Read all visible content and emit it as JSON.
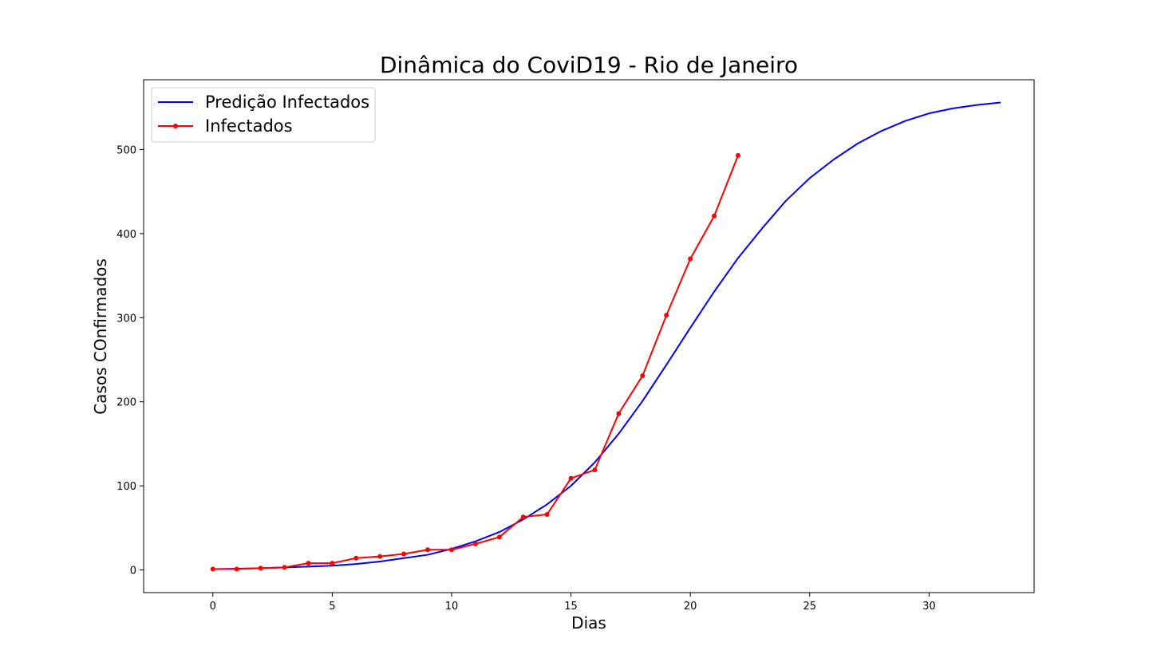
{
  "chart_data": {
    "type": "line",
    "title": "Dinâmica do CoviD19 - Rio de Janeiro",
    "xlabel": "Dias",
    "ylabel": "Casos COnfirmados",
    "xlim": [
      -2.9,
      34.4
    ],
    "ylim": [
      -27,
      583
    ],
    "xticks": [
      0,
      5,
      10,
      15,
      20,
      25,
      30
    ],
    "yticks": [
      0,
      100,
      200,
      300,
      400,
      500
    ],
    "grid": false,
    "legend_position": "top-left",
    "series": [
      {
        "name": "Predição Infectados",
        "color": "#0000ff",
        "marker": false,
        "x": [
          0,
          1,
          2,
          3,
          4,
          5,
          6,
          7,
          8,
          9,
          10,
          11,
          12,
          13,
          14,
          15,
          16,
          17,
          18,
          19,
          20,
          21,
          22,
          23,
          24,
          25,
          26,
          27,
          28,
          29,
          30,
          31,
          32,
          33
        ],
        "y": [
          1,
          1.5,
          2,
          3,
          4,
          5,
          7,
          10,
          14,
          18,
          25,
          34,
          45,
          60,
          78,
          100,
          128,
          162,
          201,
          244,
          288,
          331,
          371,
          406,
          439,
          466,
          488,
          507,
          522,
          534,
          543,
          549,
          553,
          556
        ]
      },
      {
        "name": "Infectados",
        "color": "#ff0000",
        "marker": true,
        "x": [
          0,
          1,
          2,
          3,
          4,
          5,
          6,
          7,
          8,
          9,
          10,
          11,
          12,
          13,
          14,
          15,
          16,
          17,
          18,
          19,
          20,
          21,
          22
        ],
        "y": [
          1,
          1,
          2,
          3,
          8,
          8,
          14,
          16,
          19,
          24,
          24,
          31,
          39,
          63,
          66,
          109,
          119,
          186,
          231,
          303,
          370,
          421,
          493
        ]
      }
    ]
  }
}
